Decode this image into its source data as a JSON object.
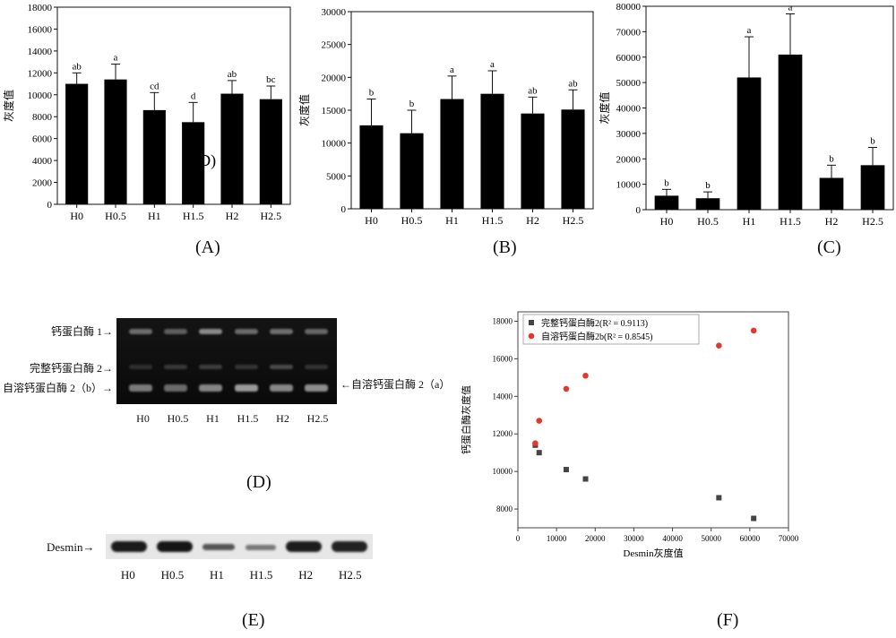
{
  "panel_labels": {
    "A": "(A)",
    "B": "(B)",
    "C": "(C)",
    "D": "(D)",
    "E": "(E)",
    "F": "(F)"
  },
  "chart_data": [
    {
      "id": "A",
      "type": "bar",
      "categories": [
        "H0",
        "H0.5",
        "H1",
        "H1.5",
        "H2",
        "H2.5"
      ],
      "values": [
        11000,
        11400,
        8600,
        7500,
        10100,
        9600
      ],
      "errors": [
        1000,
        1400,
        1600,
        1800,
        1200,
        1200
      ],
      "letters": [
        "ab",
        "a",
        "cd",
        "d",
        "ab",
        "bc"
      ],
      "ylabel": "灰度值",
      "ylim": [
        0,
        18000
      ],
      "yticks": [
        0,
        2000,
        4000,
        6000,
        8000,
        10000,
        12000,
        14000,
        16000,
        18000
      ],
      "stray_label": "D)"
    },
    {
      "id": "B",
      "type": "bar",
      "categories": [
        "H0",
        "H0.5",
        "H1",
        "H1.5",
        "H2",
        "H2.5"
      ],
      "values": [
        12700,
        11500,
        16700,
        17500,
        14500,
        15100
      ],
      "errors": [
        4000,
        3500,
        3500,
        3500,
        2500,
        3000
      ],
      "letters": [
        "b",
        "b",
        "a",
        "a",
        "ab",
        "ab"
      ],
      "ylabel": "灰度值",
      "ylim": [
        0,
        30000
      ],
      "yticks": [
        0,
        5000,
        10000,
        15000,
        20000,
        25000,
        30000
      ]
    },
    {
      "id": "C",
      "type": "bar",
      "categories": [
        "H0",
        "H0.5",
        "H1",
        "H1.5",
        "H2",
        "H2.5"
      ],
      "values": [
        5500,
        4500,
        52000,
        61000,
        12500,
        17500
      ],
      "errors": [
        2500,
        2500,
        16000,
        16000,
        5000,
        7000
      ],
      "letters": [
        "b",
        "b",
        "a",
        "a",
        "b",
        "b"
      ],
      "ylabel": "灰度值",
      "ylim": [
        0,
        80000
      ],
      "yticks": [
        0,
        10000,
        20000,
        30000,
        40000,
        50000,
        60000,
        70000,
        80000
      ]
    },
    {
      "id": "F",
      "type": "scatter",
      "xlabel": "Desmin灰度值",
      "ylabel": "钙蛋白酶灰度值",
      "xlim": [
        0,
        70000
      ],
      "ylim": [
        7000,
        18500
      ],
      "xticks": [
        0,
        10000,
        20000,
        30000,
        40000,
        50000,
        60000,
        70000
      ],
      "yticks": [
        8000,
        10000,
        12000,
        14000,
        16000,
        18000
      ],
      "legend_position": "top-left",
      "series": [
        {
          "name": "完整钙蛋白酶2(R² = 0.9113)",
          "color": "#444444",
          "marker": "square",
          "x": [
            4500,
            5500,
            12500,
            17500,
            52000,
            61000
          ],
          "y": [
            11400,
            11000,
            10100,
            9600,
            8600,
            7500
          ]
        },
        {
          "name": "自溶钙蛋白酶2b(R² = 0.8545)",
          "color": "#e03a2f",
          "marker": "circle",
          "x": [
            4500,
            5500,
            12500,
            17500,
            52000,
            61000
          ],
          "y": [
            11500,
            12700,
            14400,
            15100,
            16700,
            17500
          ]
        }
      ]
    }
  ],
  "gel_d": {
    "left_labels": [
      "钙蛋白酶 1→",
      "完整钙蛋白酶 2→",
      "自溶钙蛋白酶 2（b）→"
    ],
    "right_label": "←自溶钙蛋白酶 2（a）",
    "lanes": [
      "H0",
      "H0.5",
      "H1",
      "H1.5",
      "H2",
      "H2.5"
    ]
  },
  "gel_e": {
    "label": "Desmin→",
    "lanes": [
      "H0",
      "H0.5",
      "H1",
      "H1.5",
      "H2",
      "H2.5"
    ]
  }
}
